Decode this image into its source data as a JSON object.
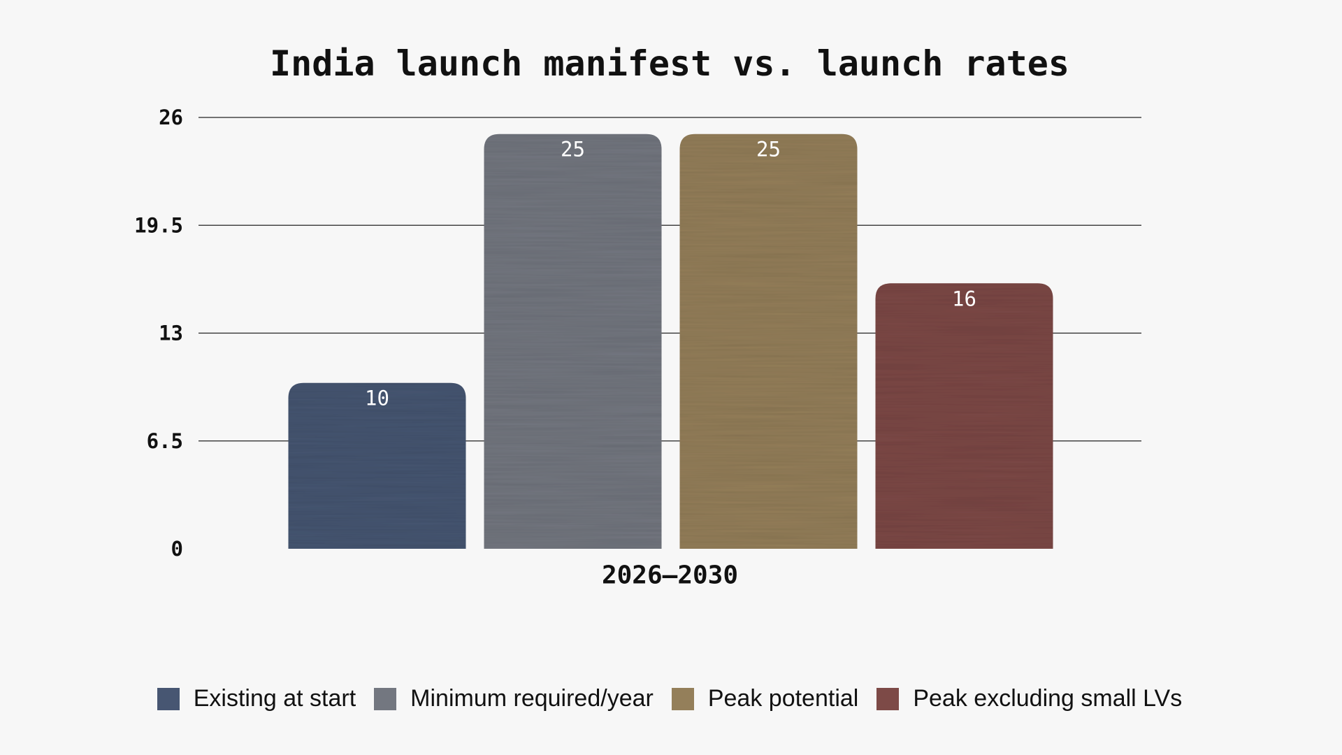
{
  "chart_data": {
    "type": "bar",
    "title": "India launch manifest vs. launch rates",
    "categories": [
      "2026–2030"
    ],
    "series": [
      {
        "name": "Existing at start",
        "color": "#475672",
        "values": [
          10
        ]
      },
      {
        "name": "Minimum required/year",
        "color": "#737780",
        "values": [
          25
        ]
      },
      {
        "name": "Peak potential",
        "color": "#947f5a",
        "values": [
          25
        ]
      },
      {
        "name": "Peak excluding small LVs",
        "color": "#7d4a47",
        "values": [
          16
        ]
      }
    ],
    "ylim": [
      0,
      26
    ],
    "yticks": [
      "0",
      "6.5",
      "13",
      "19.5",
      "26"
    ],
    "grid": true,
    "legend": "bottom"
  }
}
